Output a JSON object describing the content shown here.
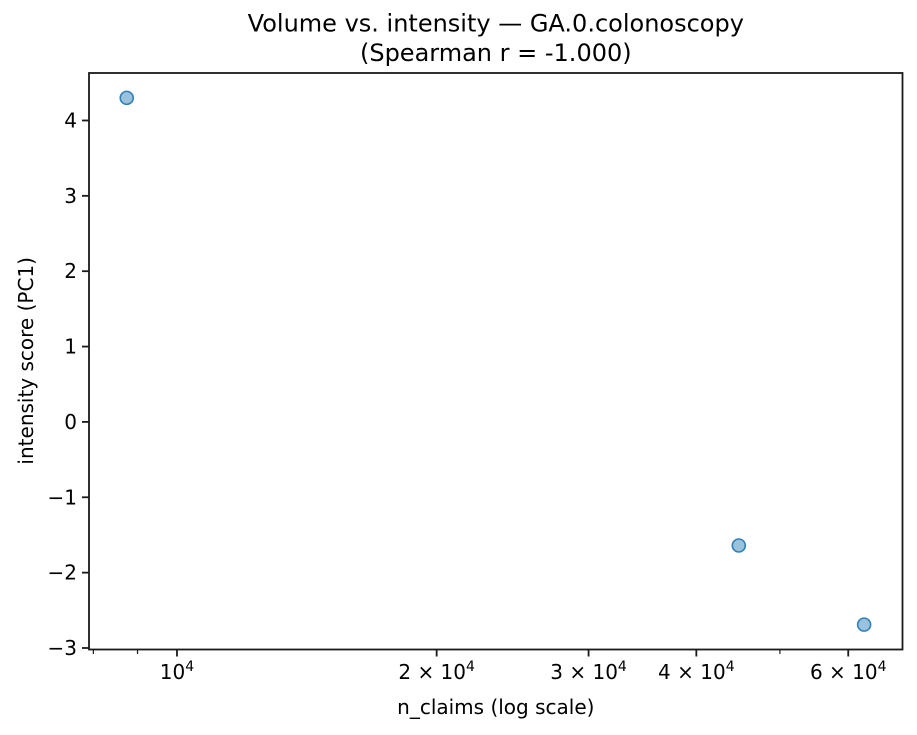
{
  "figure": {
    "title_line1": "Volume vs. intensity — GA.0.colonoscopy",
    "title_line2": "(Spearman r = -1.000)",
    "xlabel": "n_claims (log scale)",
    "ylabel": "intensity score (PC1)"
  },
  "chart_data": {
    "type": "scatter",
    "title": "Volume vs. intensity — GA.0.colonoscopy\n(Spearman r = -1.000)",
    "xlabel": "n_claims (log scale)",
    "ylabel": "intensity score (PC1)",
    "x_scale": "log",
    "y_scale": "linear",
    "grid": false,
    "legend": false,
    "spearman_r": -1.0,
    "xlim": [
      7907,
      69350
    ],
    "ylim": [
      -3.02,
      4.63
    ],
    "points": [
      {
        "x": 8745,
        "y": 4.3
      },
      {
        "x": 44800,
        "y": -1.64
      },
      {
        "x": 62600,
        "y": -2.69
      }
    ],
    "marker": {
      "shape": "circle",
      "radius_px": 6.5,
      "fill_color": "#1f77b4",
      "fill_alpha": 0.45,
      "edge_color": "#1f77b4",
      "edge_alpha": 0.9
    },
    "axis_color": "#1a1a1a",
    "x_major_ticks": [
      {
        "value": 10000,
        "prefix": "",
        "base": "10",
        "exp": "4"
      },
      {
        "value": 20000,
        "prefix": "2 × ",
        "base": "10",
        "exp": "4"
      },
      {
        "value": 30000,
        "prefix": "3 × ",
        "base": "10",
        "exp": "4"
      },
      {
        "value": 40000,
        "prefix": "4 × ",
        "base": "10",
        "exp": "4"
      },
      {
        "value": 60000,
        "prefix": "6 × ",
        "base": "10",
        "exp": "4"
      }
    ],
    "x_minor_ticks": [
      8000,
      9000,
      50000
    ],
    "y_ticks": [
      {
        "value": -3,
        "label": "−3"
      },
      {
        "value": -2,
        "label": "−2"
      },
      {
        "value": -1,
        "label": "−1"
      },
      {
        "value": 0,
        "label": "0"
      },
      {
        "value": 1,
        "label": "1"
      },
      {
        "value": 2,
        "label": "2"
      },
      {
        "value": 3,
        "label": "3"
      },
      {
        "value": 4,
        "label": "4"
      }
    ]
  }
}
